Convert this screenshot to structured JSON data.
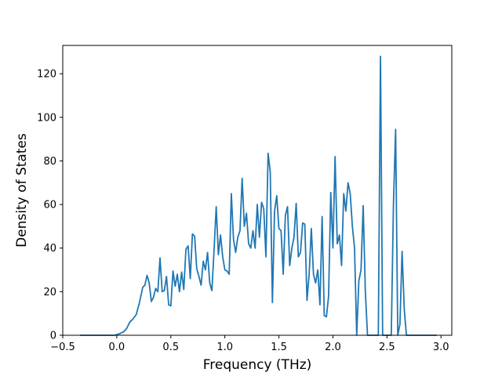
{
  "chart_data": {
    "type": "line",
    "title": "",
    "xlabel": "Frequency (THz)",
    "ylabel": "Density of States",
    "xlim": [
      -0.5,
      3.1
    ],
    "ylim": [
      0,
      133
    ],
    "xticks": [
      -0.5,
      0.0,
      0.5,
      1.0,
      1.5,
      2.0,
      2.5,
      3.0
    ],
    "xtick_labels": [
      "−0.5",
      "0.0",
      "0.5",
      "1.0",
      "1.5",
      "2.0",
      "2.5",
      "3.0"
    ],
    "yticks": [
      0,
      20,
      40,
      60,
      80,
      100,
      120
    ],
    "ytick_labels": [
      "0",
      "20",
      "40",
      "60",
      "80",
      "100",
      "120"
    ],
    "grid": false,
    "legend": "none",
    "line_color": "#1f77b4",
    "series": [
      {
        "x": [
          -0.34,
          -0.1,
          -0.02,
          0.0,
          0.03,
          0.06,
          0.09,
          0.12,
          0.15,
          0.18,
          0.21,
          0.24,
          0.26,
          0.28,
          0.3,
          0.32,
          0.34,
          0.36,
          0.38,
          0.4,
          0.42,
          0.44,
          0.46,
          0.48,
          0.5,
          0.52,
          0.54,
          0.56,
          0.58,
          0.6,
          0.62,
          0.64,
          0.66,
          0.68,
          0.7,
          0.72,
          0.74,
          0.76,
          0.78,
          0.8,
          0.82,
          0.84,
          0.86,
          0.88,
          0.9,
          0.92,
          0.94,
          0.96,
          0.98,
          1.0,
          1.02,
          1.04,
          1.06,
          1.08,
          1.1,
          1.12,
          1.14,
          1.16,
          1.18,
          1.2,
          1.22,
          1.24,
          1.26,
          1.28,
          1.3,
          1.32,
          1.34,
          1.36,
          1.38,
          1.4,
          1.42,
          1.44,
          1.46,
          1.48,
          1.5,
          1.52,
          1.54,
          1.56,
          1.58,
          1.6,
          1.62,
          1.64,
          1.66,
          1.68,
          1.7,
          1.72,
          1.74,
          1.76,
          1.78,
          1.8,
          1.82,
          1.84,
          1.86,
          1.88,
          1.9,
          1.92,
          1.94,
          1.96,
          1.98,
          2.0,
          2.02,
          2.04,
          2.06,
          2.08,
          2.1,
          2.12,
          2.14,
          2.16,
          2.18,
          2.2,
          2.22,
          2.24,
          2.26,
          2.28,
          2.3,
          2.32,
          2.34,
          2.36,
          2.38,
          2.4,
          2.42,
          2.44,
          2.46,
          2.48,
          2.5,
          2.52,
          2.54,
          2.56,
          2.58,
          2.6,
          2.62,
          2.64,
          2.66,
          2.68,
          2.7,
          2.8,
          2.96
        ],
        "y": [
          0,
          0,
          0,
          0.3,
          0.8,
          1.5,
          3,
          6,
          7.5,
          9.5,
          15,
          22,
          23,
          27.5,
          24,
          15.5,
          17.5,
          21.5,
          20,
          35.5,
          20,
          20.5,
          27,
          14,
          13.5,
          29.5,
          22.5,
          28,
          20,
          29,
          21,
          39.5,
          41,
          26,
          46.5,
          45.5,
          30.5,
          27,
          23,
          34,
          30,
          38,
          24,
          20.5,
          39,
          59,
          37,
          46,
          36,
          30,
          29.5,
          28,
          65,
          44,
          38,
          45,
          48,
          72,
          50,
          56,
          42,
          40,
          48,
          40,
          60,
          45,
          61,
          58,
          36,
          83.5,
          75,
          15,
          57,
          64,
          49,
          48,
          28,
          55,
          59,
          32,
          40,
          45,
          60.5,
          36,
          38,
          51.5,
          51,
          16,
          28,
          49,
          28,
          24,
          30,
          14,
          54.5,
          9,
          8.5,
          18,
          65.5,
          40,
          82,
          42,
          46,
          32,
          65,
          57,
          70,
          65,
          50,
          40,
          0,
          25,
          30,
          59.5,
          20,
          0,
          0,
          0,
          0,
          0,
          0,
          128,
          0,
          0,
          0,
          0,
          0,
          60,
          94.5,
          0,
          5,
          38.5,
          12,
          0,
          0,
          0,
          0
        ]
      }
    ]
  }
}
